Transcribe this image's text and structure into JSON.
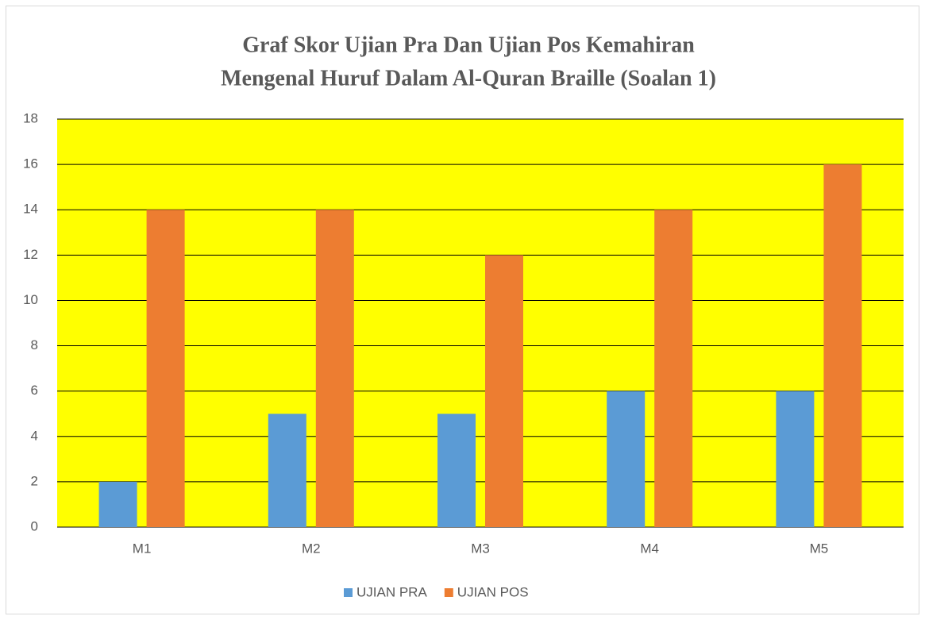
{
  "chart_data": {
    "type": "bar",
    "title": [
      "Graf Skor Ujian Pra Dan Ujian Pos Kemahiran",
      "Mengenal Huruf Dalam Al-Quran Braille (Soalan 1)"
    ],
    "categories": [
      "M1",
      "M2",
      "M3",
      "M4",
      "M5"
    ],
    "series": [
      {
        "name": "UJIAN PRA",
        "color": "#5b9bd5",
        "values": [
          2,
          5,
          5,
          6,
          6
        ]
      },
      {
        "name": "UJIAN POS",
        "color": "#ed7d31",
        "values": [
          14,
          14,
          12,
          14,
          16
        ]
      }
    ],
    "ylim": [
      0,
      18
    ],
    "yticks": [
      0,
      2,
      4,
      6,
      8,
      10,
      12,
      14,
      16,
      18
    ],
    "grid": true,
    "plot_background": "#ffff00",
    "legend": "bottom"
  }
}
